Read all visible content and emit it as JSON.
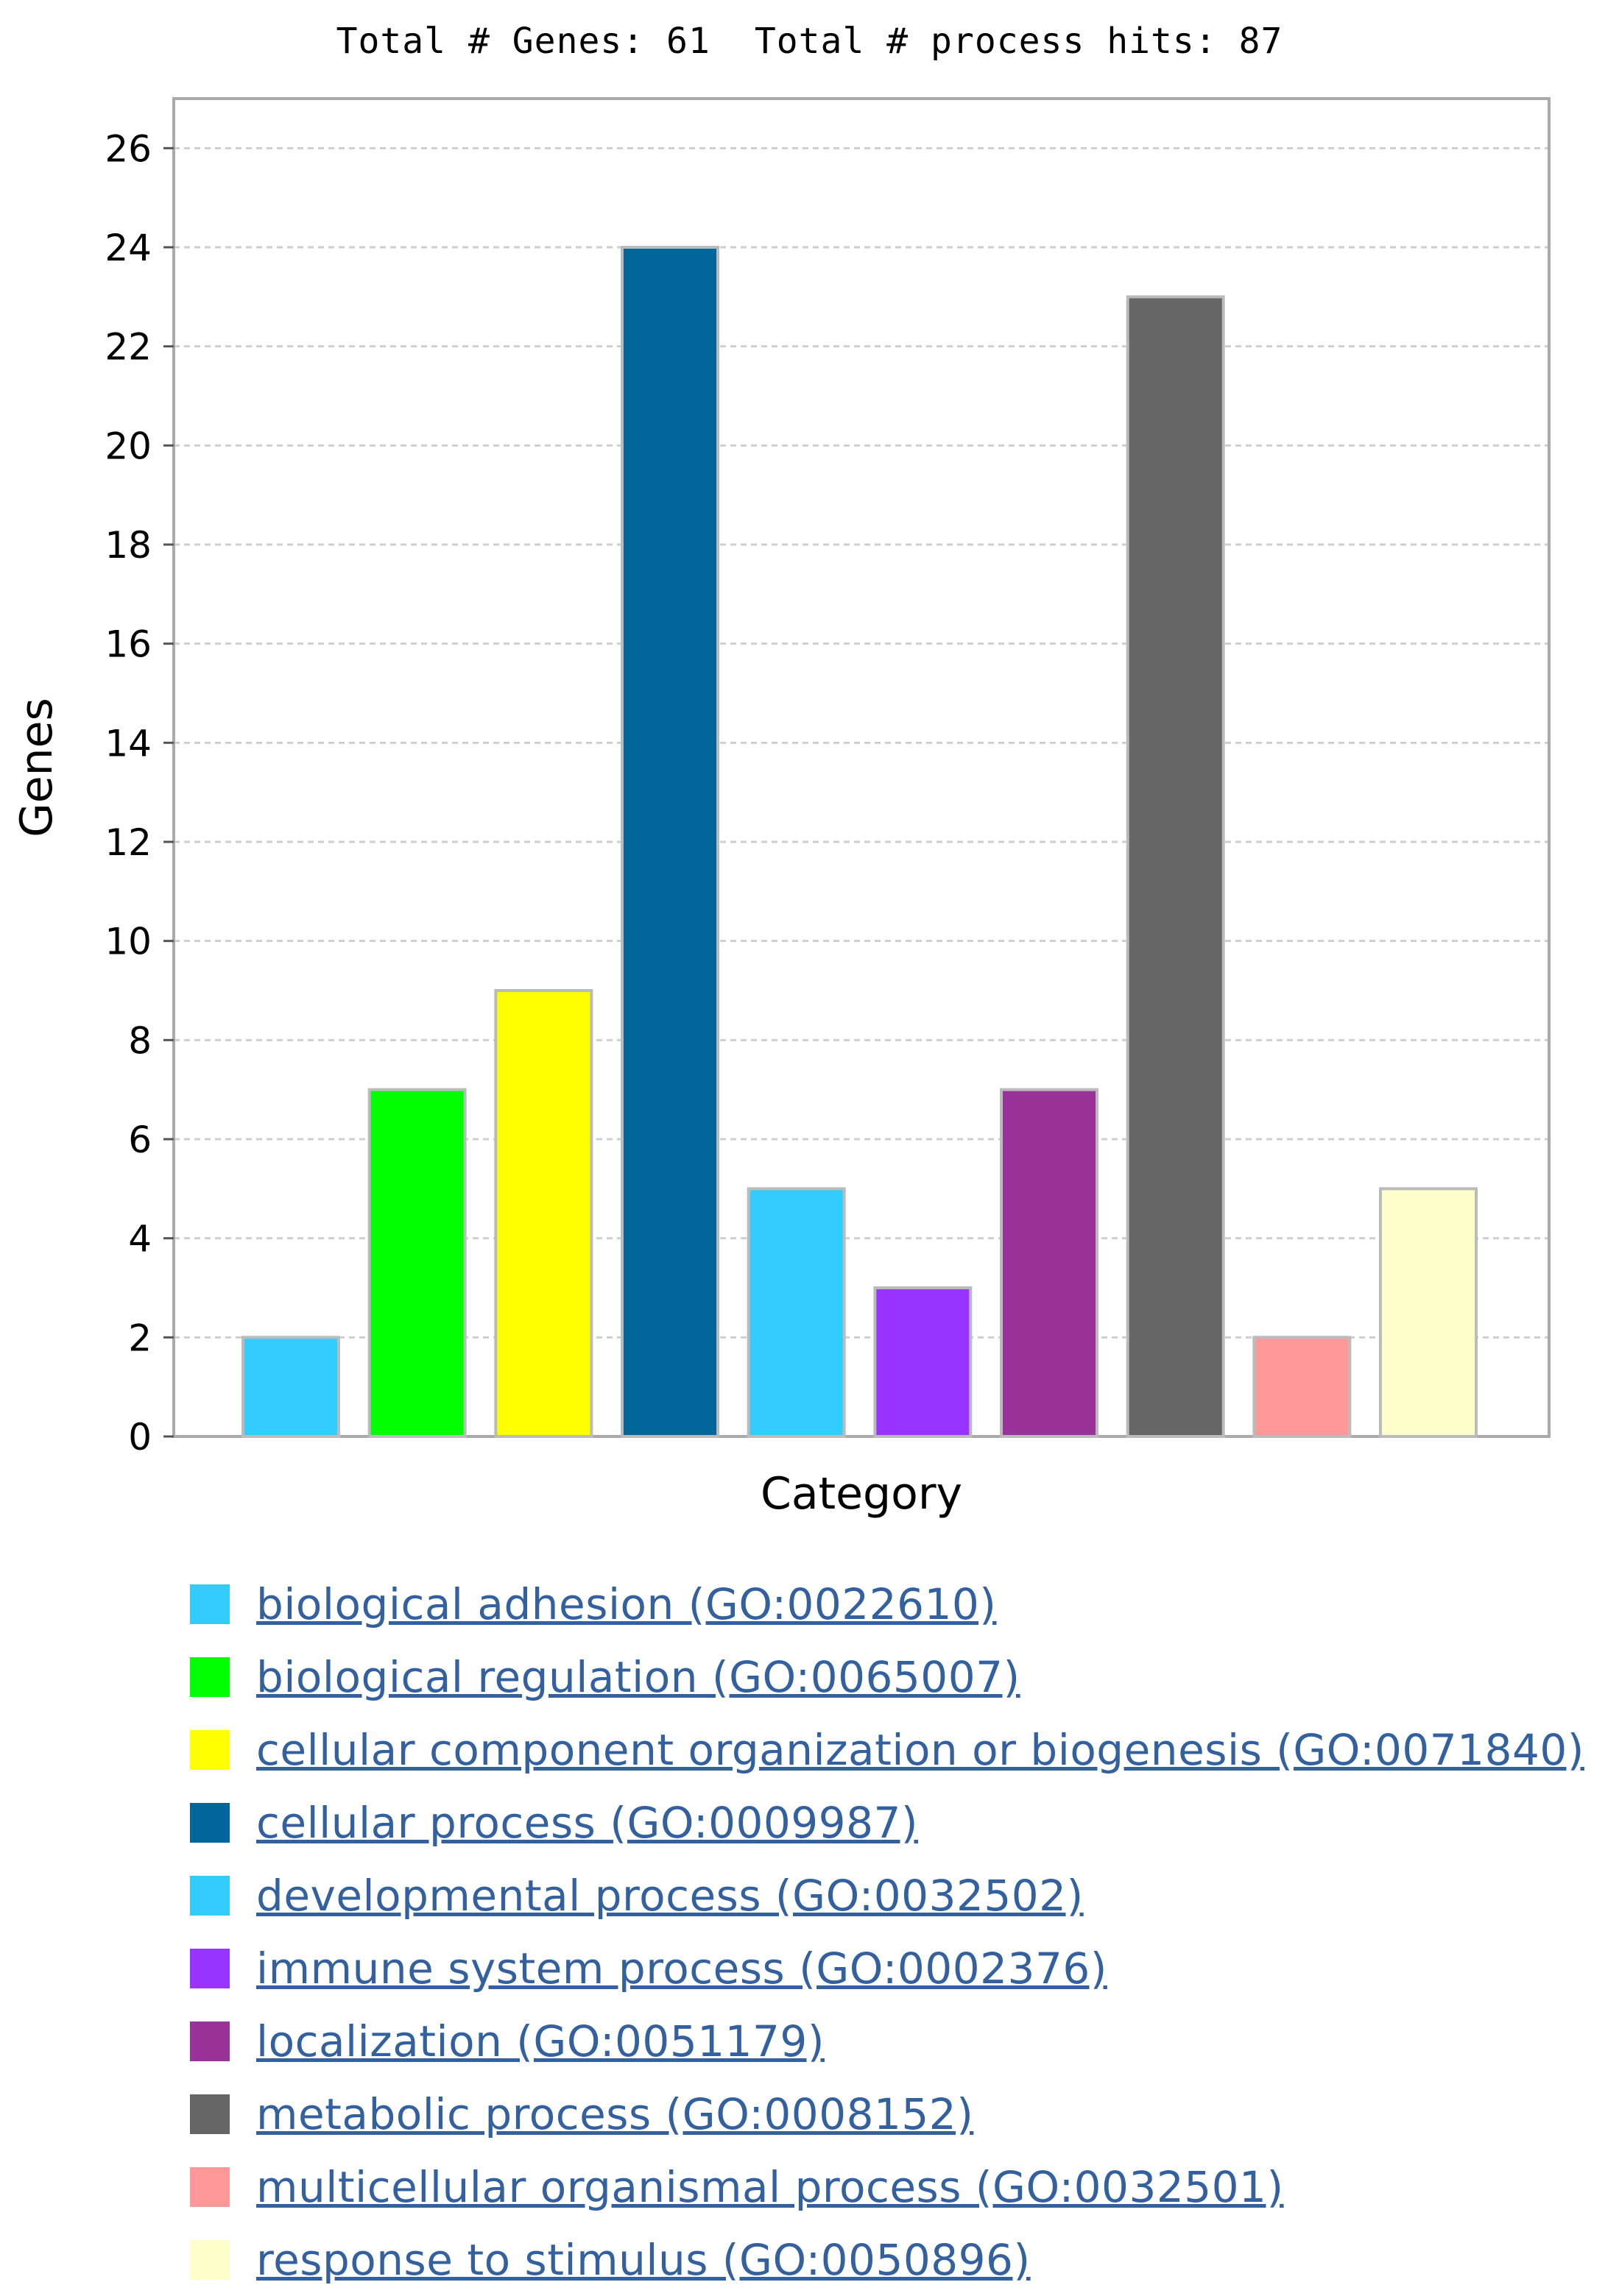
{
  "header": {
    "total_genes": "Total # Genes: 61",
    "total_hits": "Total # process hits: 87"
  },
  "chart_data": {
    "type": "bar",
    "xlabel": "Category",
    "ylabel": "Genes",
    "ylim": [
      0,
      27
    ],
    "yticks": [
      0,
      2,
      4,
      6,
      8,
      10,
      12,
      14,
      16,
      18,
      20,
      22,
      24,
      26
    ],
    "grid": "horizontal dashed",
    "legend_placement": "bottom",
    "categories": [
      "biological adhesion (GO:0022610)",
      "biological regulation (GO:0065007)",
      "cellular component organization or biogenesis (GO:0071840)",
      "cellular process (GO:0009987)",
      "developmental process (GO:0032502)",
      "immune system process (GO:0002376)",
      "localization (GO:0051179)",
      "metabolic process (GO:0008152)",
      "multicellular organismal process (GO:0032501)",
      "response to stimulus (GO:0050896)"
    ],
    "values": [
      2,
      7,
      9,
      24,
      5,
      3,
      7,
      23,
      2,
      5
    ],
    "colors": [
      "#33ccff",
      "#00ff00",
      "#ffff00",
      "#006699",
      "#33ccff",
      "#9933ff",
      "#993399",
      "#666666",
      "#ff9999",
      "#ffffcc"
    ]
  }
}
